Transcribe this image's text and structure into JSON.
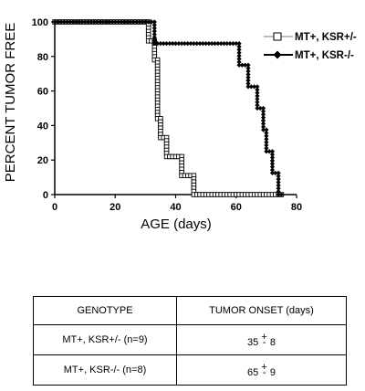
{
  "chart_data": {
    "type": "line",
    "step": true,
    "xlabel": "AGE (days)",
    "ylabel": "PERCENT TUMOR FREE",
    "xlim": [
      0,
      80
    ],
    "ylim": [
      0,
      100
    ],
    "xticks": [
      0,
      20,
      40,
      60,
      80
    ],
    "yticks": [
      0,
      20,
      40,
      60,
      80,
      100
    ],
    "grid": false,
    "legend_position": "top-right",
    "series": [
      {
        "name": "MT+, KSR+/-",
        "color": "#a6a6a6",
        "marker": "open-square",
        "x": [
          0,
          31,
          31,
          33,
          33,
          34,
          34,
          35,
          35,
          37,
          37,
          42,
          42,
          46,
          46,
          75
        ],
        "y": [
          100,
          100,
          89,
          89,
          78,
          78,
          44,
          44,
          33,
          33,
          22,
          22,
          11,
          11,
          0,
          0
        ]
      },
      {
        "name": "MT+, KSR-/-",
        "color": "#000000",
        "marker": "filled-diamond",
        "x": [
          0,
          31,
          31,
          33,
          33,
          61,
          61,
          64,
          64,
          67,
          67,
          69,
          69,
          70,
          70,
          72,
          72,
          74,
          74,
          75
        ],
        "y": [
          100,
          100,
          100,
          100,
          87.5,
          87.5,
          75,
          75,
          62.5,
          62.5,
          50,
          50,
          37.5,
          37.5,
          25,
          25,
          12.5,
          12.5,
          0,
          0
        ]
      }
    ]
  },
  "table": {
    "headers": [
      "GENOTYPE",
      "TUMOR ONSET (days)"
    ],
    "rows": [
      {
        "genotype": "MT+, KSR+/- (n=9)",
        "onset_mean": "35",
        "pm": "+",
        "onset_sd": "8"
      },
      {
        "genotype": "MT+, KSR-/- (n=8)",
        "onset_mean": "65",
        "pm": "+",
        "onset_sd": "9"
      }
    ]
  }
}
